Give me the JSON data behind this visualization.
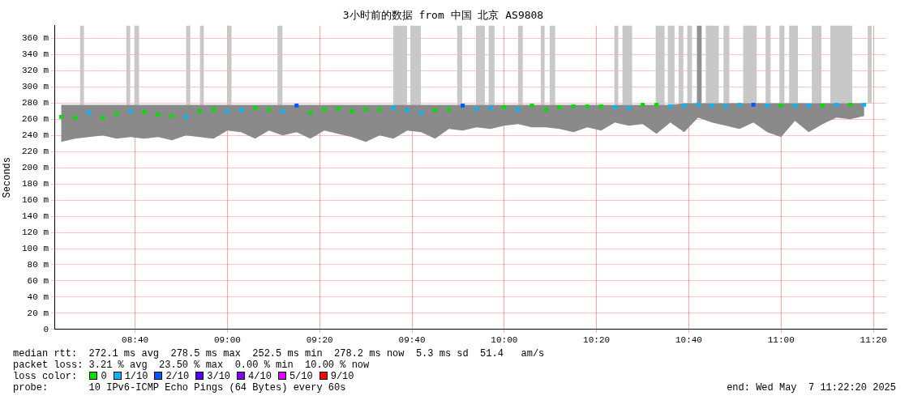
{
  "chart_data": {
    "type": "scatter",
    "title": "3小时前的数据 from 中国 北京 AS9808",
    "ylabel": "Seconds",
    "x": [
      8.4,
      8.45,
      8.5,
      8.55,
      8.6,
      8.65,
      8.7,
      8.75,
      8.8,
      8.85,
      8.9,
      8.95,
      9.0,
      9.05,
      9.1,
      9.15,
      9.2,
      9.25,
      9.3,
      9.35,
      9.4,
      9.45,
      9.5,
      9.55,
      9.6,
      9.65,
      9.7,
      9.75,
      9.8,
      9.85,
      9.9,
      9.95,
      10.0,
      10.05,
      10.1,
      10.15,
      10.2,
      10.25,
      10.3,
      10.35,
      10.4,
      10.45,
      10.5,
      10.55,
      10.6,
      10.65,
      10.7,
      10.75,
      10.8,
      10.85,
      10.9,
      10.95,
      11.0,
      11.05,
      11.1,
      11.15,
      11.2,
      11.25,
      11.3
    ],
    "series": [
      {
        "name": "0",
        "color": "#00e000",
        "values": [
          263,
          262,
          null,
          262,
          267,
          null,
          269,
          266,
          264,
          null,
          270,
          272,
          null,
          null,
          274,
          272,
          null,
          null,
          268,
          272,
          273,
          270,
          272,
          272,
          null,
          null,
          null,
          271,
          272,
          null,
          null,
          null,
          275,
          null,
          277,
          272,
          275,
          276,
          276,
          276,
          null,
          null,
          278,
          278,
          null,
          null,
          null,
          null,
          null,
          null,
          null,
          null,
          277,
          null,
          null,
          277,
          null,
          278,
          null
        ],
        "lower": [
          232,
          236,
          238,
          240,
          236,
          238,
          236,
          238,
          234,
          240,
          238,
          236,
          246,
          244,
          236,
          246,
          240,
          244,
          236,
          246,
          242,
          238,
          232,
          240,
          236,
          246,
          244,
          236,
          248,
          246,
          250,
          248,
          252,
          254,
          250,
          250,
          248,
          244,
          250,
          246,
          256,
          252,
          254,
          242,
          256,
          244,
          262,
          256,
          252,
          248,
          256,
          244,
          238,
          258,
          244,
          254,
          262,
          260,
          264
        ],
        "upper": [
          278,
          278,
          278,
          278,
          278,
          278,
          278,
          278,
          278,
          278,
          278,
          278,
          278,
          278,
          278,
          278,
          278,
          278,
          278,
          278,
          278,
          278,
          278,
          278,
          278,
          278,
          278,
          278,
          278,
          278,
          278,
          278,
          278,
          278,
          278,
          278,
          278,
          278,
          278,
          278,
          278,
          278,
          278,
          278,
          278,
          280,
          280,
          280,
          280,
          280,
          280,
          280,
          280,
          280,
          280,
          280,
          280,
          280,
          280
        ]
      },
      {
        "name": "1/10",
        "color": "#00b8ff",
        "values": [
          null,
          null,
          268,
          null,
          null,
          270,
          null,
          null,
          null,
          263,
          null,
          null,
          270,
          271,
          null,
          null,
          270,
          null,
          null,
          null,
          null,
          null,
          null,
          null,
          274,
          271,
          268,
          null,
          null,
          null,
          273,
          274,
          null,
          272,
          null,
          null,
          null,
          null,
          null,
          null,
          275,
          274,
          null,
          null,
          276,
          277,
          278,
          277,
          276,
          278,
          null,
          277,
          null,
          277,
          277,
          null,
          278,
          null,
          278
        ]
      },
      {
        "name": "2/10",
        "color": "#0059ff",
        "values": [
          null,
          null,
          null,
          null,
          null,
          null,
          null,
          null,
          null,
          null,
          null,
          null,
          null,
          null,
          null,
          null,
          null,
          277,
          null,
          null,
          null,
          null,
          null,
          null,
          null,
          null,
          null,
          null,
          null,
          277,
          null,
          null,
          null,
          null,
          null,
          null,
          null,
          null,
          null,
          null,
          null,
          null,
          null,
          null,
          null,
          null,
          null,
          null,
          null,
          null,
          278,
          null,
          null,
          null,
          null,
          null,
          null,
          null,
          null
        ]
      },
      {
        "name": "3/10",
        "color": "#5500ff",
        "values": [
          null,
          null,
          null,
          null,
          null,
          null,
          null,
          null,
          null,
          null,
          null,
          null,
          null,
          null,
          null,
          null,
          null,
          null,
          null,
          null,
          null,
          null,
          null,
          null,
          null,
          null,
          null,
          null,
          null,
          null,
          null,
          null,
          null,
          null,
          null,
          null,
          null,
          null,
          null,
          null,
          null,
          null,
          null,
          null,
          null,
          null,
          null,
          null,
          null,
          null,
          null,
          null,
          null,
          null,
          null,
          null,
          null,
          null,
          null
        ]
      },
      {
        "name": "4/10",
        "color": "#7e00ff",
        "values": [
          null,
          null,
          null,
          null,
          null,
          null,
          null,
          null,
          null,
          null,
          null,
          null,
          null,
          null,
          null,
          null,
          null,
          null,
          null,
          null,
          null,
          null,
          null,
          null,
          null,
          null,
          null,
          null,
          null,
          null,
          null,
          null,
          null,
          null,
          null,
          null,
          null,
          null,
          null,
          null,
          null,
          null,
          null,
          null,
          null,
          null,
          null,
          null,
          null,
          null,
          null,
          null,
          null,
          null,
          null,
          null,
          null,
          null,
          null
        ]
      },
      {
        "name": "5/10",
        "color": "#dd00ff",
        "values": [
          null,
          null,
          null,
          null,
          null,
          null,
          null,
          null,
          null,
          null,
          null,
          null,
          null,
          null,
          null,
          null,
          null,
          null,
          null,
          null,
          null,
          null,
          null,
          null,
          null,
          null,
          null,
          null,
          null,
          null,
          null,
          null,
          null,
          null,
          null,
          null,
          null,
          null,
          null,
          null,
          null,
          null,
          null,
          null,
          null,
          null,
          null,
          null,
          null,
          null,
          null,
          null,
          null,
          null,
          null,
          null,
          null,
          null,
          null
        ]
      },
      {
        "name": "9/10",
        "color": "#ff0000",
        "values": [
          null,
          null,
          null,
          null,
          null,
          null,
          null,
          null,
          null,
          null,
          null,
          null,
          null,
          null,
          null,
          null,
          null,
          null,
          null,
          null,
          null,
          null,
          null,
          null,
          null,
          null,
          null,
          null,
          null,
          null,
          null,
          null,
          null,
          null,
          null,
          null,
          null,
          null,
          null,
          null,
          null,
          null,
          null,
          null,
          null,
          null,
          null,
          null,
          null,
          null,
          null,
          null,
          null,
          null,
          null,
          null,
          null,
          null,
          null
        ]
      }
    ],
    "bands": [
      {
        "axis": "x",
        "from": 8.468,
        "to": 8.482,
        "color": "#c8c8c8"
      },
      {
        "axis": "x",
        "from": 8.635,
        "to": 8.649,
        "color": "#c8c8c8"
      },
      {
        "axis": "x",
        "from": 8.664,
        "to": 8.681,
        "color": "#c8c8c8"
      },
      {
        "axis": "x",
        "from": 8.851,
        "to": 8.866,
        "color": "#c8c8c8"
      },
      {
        "axis": "x",
        "from": 8.901,
        "to": 8.915,
        "color": "#c8c8c8"
      },
      {
        "axis": "x",
        "from": 9.0,
        "to": 9.015,
        "color": "#c8c8c8"
      },
      {
        "axis": "x",
        "from": 9.181,
        "to": 9.199,
        "color": "#c8c8c8"
      },
      {
        "axis": "x",
        "from": 9.599,
        "to": 9.649,
        "color": "#c8c8c8"
      },
      {
        "axis": "x",
        "from": 9.661,
        "to": 9.699,
        "color": "#c8c8c8"
      },
      {
        "axis": "x",
        "from": 9.83,
        "to": 9.848,
        "color": "#c8c8c8"
      },
      {
        "axis": "x",
        "from": 9.898,
        "to": 9.93,
        "color": "#c8c8c8"
      },
      {
        "axis": "x",
        "from": 9.944,
        "to": 9.965,
        "color": "#c8c8c8"
      },
      {
        "axis": "x",
        "from": 10.05,
        "to": 10.067,
        "color": "#c8c8c8"
      },
      {
        "axis": "x",
        "from": 10.132,
        "to": 10.146,
        "color": "#c8c8c8"
      },
      {
        "axis": "x",
        "from": 10.164,
        "to": 10.184,
        "color": "#c8c8c8"
      },
      {
        "axis": "x",
        "from": 10.398,
        "to": 10.412,
        "color": "#c8c8c8"
      },
      {
        "axis": "x",
        "from": 10.427,
        "to": 10.462,
        "color": "#c8c8c8"
      },
      {
        "axis": "x",
        "from": 10.547,
        "to": 10.579,
        "color": "#c8c8c8"
      },
      {
        "axis": "x",
        "from": 10.591,
        "to": 10.615,
        "color": "#c8c8c8"
      },
      {
        "axis": "x",
        "from": 10.63,
        "to": 10.647,
        "color": "#c8c8c8"
      },
      {
        "axis": "x",
        "from": 10.661,
        "to": 10.678,
        "color": "#c8c8c8"
      },
      {
        "axis": "x",
        "from": 10.696,
        "to": 10.713,
        "color": "#909090"
      },
      {
        "axis": "x",
        "from": 10.728,
        "to": 10.775,
        "color": "#c8c8c8"
      },
      {
        "axis": "x",
        "from": 10.792,
        "to": 10.813,
        "color": "#c8c8c8"
      },
      {
        "axis": "x",
        "from": 10.863,
        "to": 10.912,
        "color": "#c8c8c8"
      },
      {
        "axis": "x",
        "from": 10.944,
        "to": 10.962,
        "color": "#c8c8c8"
      },
      {
        "axis": "x",
        "from": 10.994,
        "to": 11.012,
        "color": "#c8c8c8"
      },
      {
        "axis": "x",
        "from": 11.029,
        "to": 11.061,
        "color": "#c8c8c8"
      },
      {
        "axis": "x",
        "from": 11.111,
        "to": 11.146,
        "color": "#c8c8c8"
      },
      {
        "axis": "x",
        "from": 11.178,
        "to": 11.257,
        "color": "#c8c8c8"
      },
      {
        "axis": "x",
        "from": 11.313,
        "to": 11.327,
        "color": "#c8c8c8"
      }
    ],
    "xlim": [
      8.375,
      11.38
    ],
    "xticks": [
      {
        "value": 8.6667,
        "label": "08:40"
      },
      {
        "value": 9.0,
        "label": "09:00"
      },
      {
        "value": 9.3333,
        "label": "09:20"
      },
      {
        "value": 9.6667,
        "label": "09:40"
      },
      {
        "value": 10.0,
        "label": "10:00"
      },
      {
        "value": 10.3333,
        "label": "10:20"
      },
      {
        "value": 10.6667,
        "label": "10:40"
      },
      {
        "value": 11.0,
        "label": "11:00"
      },
      {
        "value": 11.3333,
        "label": "11:20"
      }
    ],
    "ylim": [
      0,
      376
    ],
    "yticks": [
      0,
      {
        "value": 20,
        "label": "20 m"
      },
      {
        "value": 40,
        "label": "40 m"
      },
      {
        "value": 60,
        "label": "60 m"
      },
      {
        "value": 80,
        "label": "80 m"
      },
      {
        "value": 100,
        "label": "100 m"
      },
      {
        "value": 120,
        "label": "120 m"
      },
      {
        "value": 140,
        "label": "140 m"
      },
      {
        "value": 160,
        "label": "160 m"
      },
      {
        "value": 180,
        "label": "180 m"
      },
      {
        "value": 200,
        "label": "200 m"
      },
      {
        "value": 220,
        "label": "220 m"
      },
      {
        "value": 240,
        "label": "240 m"
      },
      {
        "value": 260,
        "label": "260 m"
      },
      {
        "value": 280,
        "label": "280 m"
      },
      {
        "value": 300,
        "label": "300 m"
      },
      {
        "value": 320,
        "label": "320 m"
      },
      {
        "value": 340,
        "label": "340 m"
      },
      {
        "value": 360,
        "label": "360 m"
      }
    ],
    "grid": true,
    "legend": "bottom",
    "legend_title": "loss color:",
    "marker": "square",
    "annotations": [
      "median rtt:  272.1 ms avg  278.5 ms max  252.5 ms min  278.2 ms now  5.3 ms sd  51.4   am/s",
      "packet loss: 3.21 % avg  23.50 % max  0.00 % min  10.00 % now",
      "probe:       10 IPv6-ICMP Echo Pings (64 Bytes) every 60s",
      "end: Wed May  7 11:22:20 2025"
    ]
  }
}
